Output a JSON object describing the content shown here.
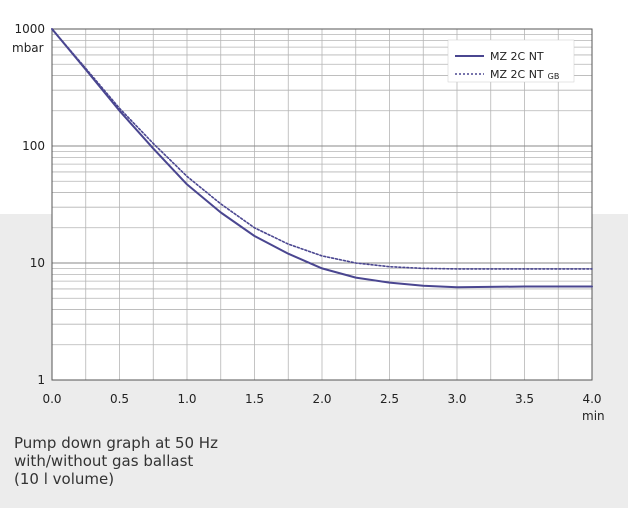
{
  "chart_data": {
    "type": "line",
    "y_scale": "log",
    "xlim": [
      0,
      4
    ],
    "ylim": [
      1,
      1000
    ],
    "x_unit": "min",
    "y_unit": "mbar",
    "x_ticks": [
      "0.0",
      "0.5",
      "1.0",
      "1.5",
      "2.0",
      "2.5",
      "3.0",
      "3.5",
      "4.0"
    ],
    "y_ticks": [
      "1000",
      "100",
      "10",
      "1"
    ],
    "grid": true,
    "legend_position": "top-right",
    "series": [
      {
        "name": "MZ 2C NT",
        "line_style": "solid",
        "color": "#4a4690",
        "x": [
          0.0,
          0.25,
          0.5,
          0.75,
          1.0,
          1.25,
          1.5,
          1.75,
          2.0,
          2.25,
          2.5,
          2.75,
          3.0,
          3.5,
          4.0
        ],
        "y": [
          1000,
          450,
          200,
          95,
          47,
          27,
          17,
          12,
          9,
          7.5,
          6.8,
          6.4,
          6.2,
          6.3,
          6.3
        ]
      },
      {
        "name": "MZ 2C NT",
        "name_sub": "GB",
        "line_style": "dotted",
        "color": "#4a4690",
        "x": [
          0.0,
          0.25,
          0.5,
          0.75,
          1.0,
          1.25,
          1.5,
          1.75,
          2.0,
          2.25,
          2.5,
          2.75,
          3.0,
          3.5,
          4.0
        ],
        "y": [
          1000,
          460,
          210,
          105,
          55,
          32,
          20,
          14.5,
          11.5,
          10,
          9.3,
          9,
          8.9,
          8.9,
          8.9
        ]
      }
    ]
  },
  "caption": {
    "line1": "Pump down graph at 50 Hz",
    "line2": "with/without gas ballast",
    "line3": "(10 l volume)"
  }
}
